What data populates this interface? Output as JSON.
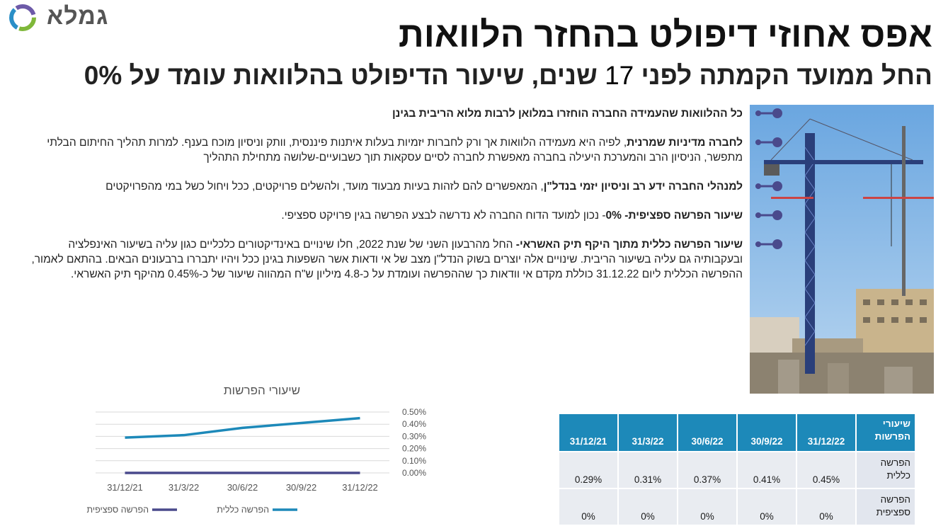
{
  "brand": {
    "logo_text": "גמלא"
  },
  "header": {
    "title": "אפס אחוזי דיפולט בהחזר הלוואות",
    "subtitle_part1": "החל ממועד הקמתה לפני ",
    "subtitle_number": "17",
    "subtitle_part2": " שנים, שיעור הדיפולט בהלוואות עומד על 0%"
  },
  "bullets": [
    {
      "bold": "כל ההלוואות שהעמידה החברה הוחזרו במלואן לרבות מלוא הריבית בגינן",
      "text": ""
    },
    {
      "bold": "לחברה מדיניות שמרנית",
      "text": ", לפיה היא מעמידה הלוואות אך ורק לחברות יזמיות בעלות איתנות פיננסית, וותק וניסיון מוכח בענף. למרות תהליך החיתום הבלתי מתפשר, הניסיון הרב והמערכת היעילה בחברה מאפשרת לחברה לסיים עסקאות תוך כשבועיים-שלושה מתחילת התהליך"
    },
    {
      "bold": "למנהלי החברה ידע רב וניסיון יזמי בנדל\"ן",
      "text": ", המאפשרים להם לזהות בעיות מבעוד מועד, ולהשלים פרויקטים, ככל ויחול כשל במי מהפרויקטים"
    },
    {
      "bold": "שיעור הפרשה ספציפית- 0%",
      "text": "- נכון למועד הדוח החברה לא נדרשה לבצע הפרשה בגין פרויקט ספציפי."
    },
    {
      "bold": "שיעור הפרשה כללית מתוך היקף תיק האשראי-",
      "text": "  החל מהרבעון השני של שנת 2022, חלו שינויים באינדיקטורים כלכליים כגון עליה בשיעור האינפלציה ובעקבותיה גם עליה בשיעור הריבית. שינויים אלה יוצרים בשוק הנדל\"ן מצב של אי ודאות אשר השפעות בגינן ככל ויהיו יתבררו ברבעונים הבאים. בהתאם לאמור, ההפרשה הכללית ליום 31.12.22 כוללת מקדם אי וודאות כך שההפרשה ועומדת על כ-4.8 מיליון ש\"ח המהווה שיעור של כ-0.45% מהיקף תיק האשראי."
    }
  ],
  "chart_data": {
    "type": "line",
    "title": "שיעורי הפרשות",
    "categories": [
      "31/12/21",
      "31/3/22",
      "30/6/22",
      "30/9/22",
      "31/12/22"
    ],
    "series": [
      {
        "name": "הפרשה כללית",
        "values": [
          0.29,
          0.31,
          0.37,
          0.41,
          0.45
        ],
        "color": "#1d89b9"
      },
      {
        "name": "הפרשה ספציפית",
        "values": [
          0,
          0,
          0,
          0,
          0
        ],
        "color": "#4a4a8c"
      }
    ],
    "yticks": [
      "0.00%",
      "0.10%",
      "0.20%",
      "0.30%",
      "0.40%",
      "0.50%"
    ],
    "ylim": [
      0,
      0.5
    ],
    "grid": true,
    "legend_position": "bottom"
  },
  "table": {
    "header_label": "שיעורי הפרשות",
    "columns": [
      "31/12/22",
      "30/9/22",
      "30/6/22",
      "31/3/22",
      "31/12/21"
    ],
    "rows": [
      {
        "label": "הפרשה כללית",
        "values": [
          "0.45%",
          "0.41%",
          "0.37%",
          "0.31%",
          "0.29%"
        ]
      },
      {
        "label": "הפרשה ספציפית",
        "values": [
          "0%",
          "0%",
          "0%",
          "0%",
          "0%"
        ]
      }
    ]
  },
  "colors": {
    "accent": "#1d89b9",
    "marker": "#4a4a8c"
  }
}
